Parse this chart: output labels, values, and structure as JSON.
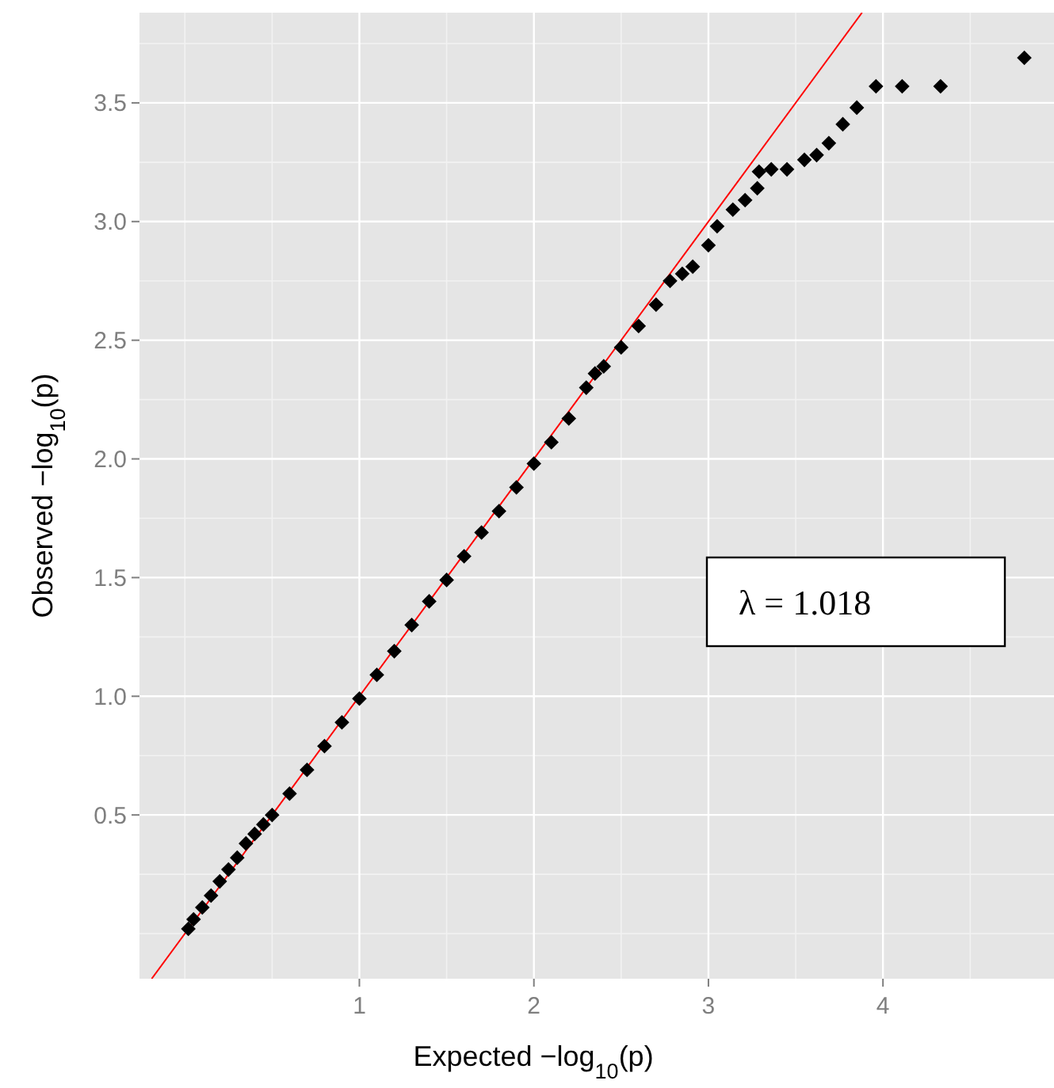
{
  "chart_data": {
    "type": "scatter",
    "xlabel": "Expected −log$_{10}$(p)",
    "ylabel": "Observed −log$_{10}$(p)",
    "xlim": [
      -0.26,
      4.98
    ],
    "ylim": [
      -0.19,
      3.88
    ],
    "xticks": [
      1,
      2,
      3,
      4
    ],
    "yticks": [
      0.5,
      {
        "value": 1,
        "label": "1.0"
      },
      1.5,
      {
        "value": 2,
        "label": "2.0"
      },
      2.5,
      {
        "value": 3,
        "label": "3.0"
      },
      3.5
    ],
    "grid": true,
    "annotations": [
      "λ = 1.018"
    ],
    "series": [
      {
        "marker": "diamond",
        "color": "#000000",
        "x": [
          0.02,
          0.05,
          0.1,
          0.15,
          0.2,
          0.25,
          0.3,
          0.35,
          0.4,
          0.45,
          0.5,
          0.6,
          0.7,
          0.8,
          0.9,
          1.0,
          1.1,
          1.2,
          1.3,
          1.4,
          1.5,
          1.6,
          1.7,
          1.8,
          1.9,
          2.0,
          2.1,
          2.2,
          2.3,
          2.35,
          2.4,
          2.5,
          2.6,
          2.7,
          2.78,
          2.85,
          2.91,
          3.0,
          3.05,
          3.14,
          3.21,
          3.28,
          3.29,
          3.36,
          3.45,
          3.55,
          3.62,
          3.69,
          3.77,
          3.85,
          3.96,
          4.11,
          4.33,
          4.81
        ],
        "values": [
          0.02,
          0.06,
          0.11,
          0.16,
          0.22,
          0.27,
          0.32,
          0.38,
          0.42,
          0.46,
          0.5,
          0.59,
          0.69,
          0.79,
          0.89,
          0.99,
          1.09,
          1.19,
          1.3,
          1.4,
          1.49,
          1.59,
          1.69,
          1.78,
          1.88,
          1.98,
          2.07,
          2.17,
          2.3,
          2.36,
          2.39,
          2.47,
          2.56,
          2.65,
          2.75,
          2.78,
          2.81,
          2.9,
          2.98,
          3.05,
          3.09,
          3.14,
          3.21,
          3.22,
          3.22,
          3.26,
          3.28,
          3.33,
          3.41,
          3.48,
          3.57,
          3.57,
          3.57,
          3.69
        ]
      },
      {
        "type": "line",
        "color": "#ff0000",
        "x": [
          -0.19,
          3.88
        ],
        "values": [
          -0.19,
          3.88
        ]
      }
    ]
  }
}
